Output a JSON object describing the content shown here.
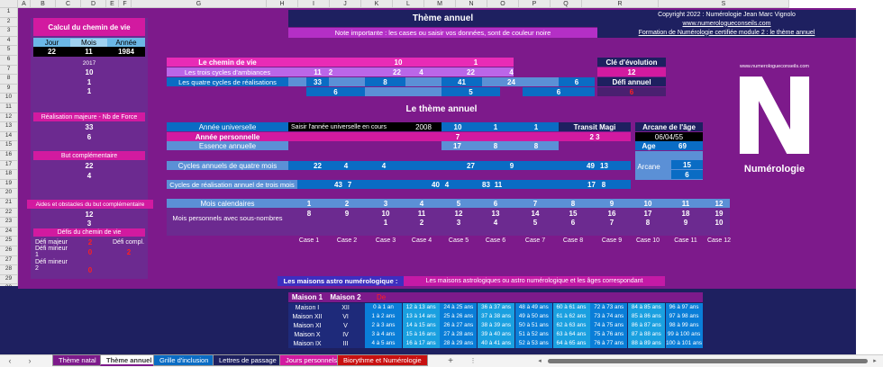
{
  "columns": [
    "A",
    "B",
    "C",
    "D",
    "E",
    "F",
    "G",
    "H",
    "I",
    "J",
    "K",
    "L",
    "M",
    "N",
    "O",
    "P",
    "Q",
    "R",
    "S"
  ],
  "rows": [
    "1",
    "2",
    "3",
    "4",
    "5",
    "6",
    "7",
    "8",
    "9",
    "10",
    "11",
    "12",
    "13",
    "14",
    "15",
    "16",
    "17",
    "18",
    "19",
    "20",
    "21",
    "22",
    "23",
    "24",
    "25",
    "26",
    "27",
    "28",
    "29",
    "30",
    "31",
    "32",
    "33",
    "34",
    "35"
  ],
  "left": {
    "title": "Calcul du chemin de vie",
    "jour_label": "Jour",
    "mois_label": "Mois",
    "annee_label": "Année",
    "jour": "22",
    "mois": "11",
    "annee": "1984",
    "year": "2017",
    "v1": "10",
    "v2": "1",
    "v3": "1",
    "realisation_label": "Réalisation majeure - Nb de Force",
    "real1": "33",
    "real2": "6",
    "but_label": "But complémentaire",
    "but1": "22",
    "but2": "4",
    "aides_label": "Aides et obstacles du but complémentaire",
    "aides1": "12",
    "aides2": "3",
    "defis_label": "Défis du chemin de vie",
    "defi_majeur_label": "Défi majeur",
    "defi_majeur": "2",
    "defi_compl_label": "Défi compl.",
    "defi_compl": "2",
    "defi_mineur1_label": "Défi mineur 1",
    "defi_mineur1": "0",
    "defi_mineur2_label": "Défi mineur 2",
    "defi_mineur2": "0"
  },
  "top": {
    "title": "Thème annuel",
    "note": "Note importante : les cases ou saisir vos données, sont de couleur noire",
    "copyright": "Copyright 2022 : Numérologie Jean Marc Vignolo",
    "site": "www.numerologueconseils.com",
    "formation": "Formation de Numérologie certifiée module 2 : le thème annuel"
  },
  "chemin": {
    "label": "Le chemin de vie",
    "v1": "10",
    "v2": "1",
    "cycles_label": "Les trois cycles d'ambiances",
    "c1": "11",
    "c2": "2",
    "c3": "22",
    "c4": "4",
    "c5": "22",
    "c6": "4",
    "real_label": "Les quatre cycles de réalisations",
    "r1": "33",
    "r2": "6",
    "r3": "8",
    "r4": "41",
    "r5": "5",
    "r6": "24",
    "r7": "6",
    "r8": "6",
    "r9": "6",
    "r10": "6",
    "cle_label": "Clé d'évolution",
    "cle": "12",
    "defi_annuel_label": "Défi annuel",
    "defi_annuel": "6"
  },
  "theme": {
    "title": "Le thème annuel",
    "annee_univ_label": "Année universelle",
    "saisir": "Saisir l'année universelle en cours",
    "annee": "2008",
    "au1": "10",
    "au2": "1",
    "au3": "1",
    "annee_perso_label": "Année personnelle",
    "ap": "7",
    "essence_label": "Essence annuelle",
    "e1": "17",
    "e2": "8",
    "e3": "8",
    "transit_label": "Transit Magi",
    "transit": "2 3",
    "arcane_age_label": "Arcane de l'âge",
    "date": "06/04/55",
    "age_label": "Age",
    "age": "69",
    "arcane_label": "Arcane",
    "arcane1": "15",
    "arcane2": "6",
    "cycles4_label": "Cycles annuels de quatre mois",
    "q1": "22",
    "q2": "4",
    "q3": "4",
    "q4": "27",
    "q5": "9",
    "q6": "49",
    "q7": "13",
    "cycles3_label": "Cycles de réalisation annuel de trois mois",
    "t1": "43",
    "t2": "7",
    "t3": "40",
    "t4": "4",
    "t5": "83",
    "t6": "11",
    "t7": "17",
    "t8": "8"
  },
  "mois": {
    "cal_label": "Mois calendaires",
    "perso_label": "Mois personnels avec sous-nombres",
    "cal": [
      "1",
      "2",
      "3",
      "4",
      "5",
      "6",
      "7",
      "8",
      "9",
      "10",
      "11",
      "12"
    ],
    "r1": [
      "8",
      "9",
      "10",
      "11",
      "12",
      "13",
      "14",
      "15",
      "16",
      "17",
      "18",
      "19"
    ],
    "r2": [
      "",
      "",
      "1",
      "2",
      "3",
      "4",
      "5",
      "6",
      "7",
      "8",
      "9",
      "10"
    ],
    "cases": [
      "Case 1",
      "Case 2",
      "Case 3",
      "Case 4",
      "Case 5",
      "Case 6",
      "Case 7",
      "Case 8",
      "Case 9",
      "Case 10",
      "Case 11",
      "Case 12"
    ]
  },
  "maisons": {
    "label": "Les maisons astro numérologique :",
    "desc": "Les maisons astrologiques ou astro numérologique et les âges correspondant",
    "h1": "Maison 1",
    "h2": "Maison 2",
    "h3": "De",
    "rows": [
      {
        "m1": "Maison I",
        "m2": "XII",
        "a": [
          "0 à 1 an",
          "12 à 13 ans",
          "24 à 25 ans",
          "36 à 37 ans",
          "48 à 49 ans",
          "60 à 61 ans",
          "72 à 73 ans",
          "84 à 85 ans",
          "96 à 97 ans"
        ]
      },
      {
        "m1": "Maison XII",
        "m2": "VI",
        "a": [
          "1 à 2 ans",
          "13 à 14 ans",
          "25 à 26 ans",
          "37 à 38 ans",
          "49 à 50 ans",
          "61 à 62 ans",
          "73 à 74 ans",
          "85 à 86 ans",
          "97 à 98 ans"
        ]
      },
      {
        "m1": "Maison XI",
        "m2": "V",
        "a": [
          "2 à 3 ans",
          "14 à 15 ans",
          "26 à 27 ans",
          "38 à 39 ans",
          "50 à 51 ans",
          "62 à 63 ans",
          "74 à 75 ans",
          "86 à 87 ans",
          "98 à 99 ans"
        ]
      },
      {
        "m1": "Maison X",
        "m2": "IV",
        "a": [
          "3 à 4 ans",
          "15 à 16 ans",
          "27 à 28 ans",
          "39 à 40 ans",
          "51 à 52 ans",
          "63 à 64 ans",
          "75 à 76 ans",
          "87 à 88 ans",
          "99 à 100 ans"
        ]
      },
      {
        "m1": "Maison IX",
        "m2": "III",
        "a": [
          "4 à 5 ans",
          "16 à 17 ans",
          "28 à 29 ans",
          "40 à 41 ans",
          "52 à 53 ans",
          "64 à 65 ans",
          "76 à 77 ans",
          "88 à 89 ans",
          "100 à 101 ans"
        ]
      }
    ]
  },
  "logo": {
    "letter": "N",
    "site": "www.numerologueconseils.com",
    "name": "Numérologie"
  },
  "tabs": [
    "Thème natal",
    "Thème annuel",
    "Grille d'inclusion",
    "Lettres de passage",
    "Jours personnels",
    "Biorythme et Numérologie"
  ],
  "tab_add": "+",
  "colors": {
    "purple": "#7d1a8b",
    "navy": "#1e2060",
    "blue": "#0a6cc4",
    "magenta": "#d21aa0"
  }
}
